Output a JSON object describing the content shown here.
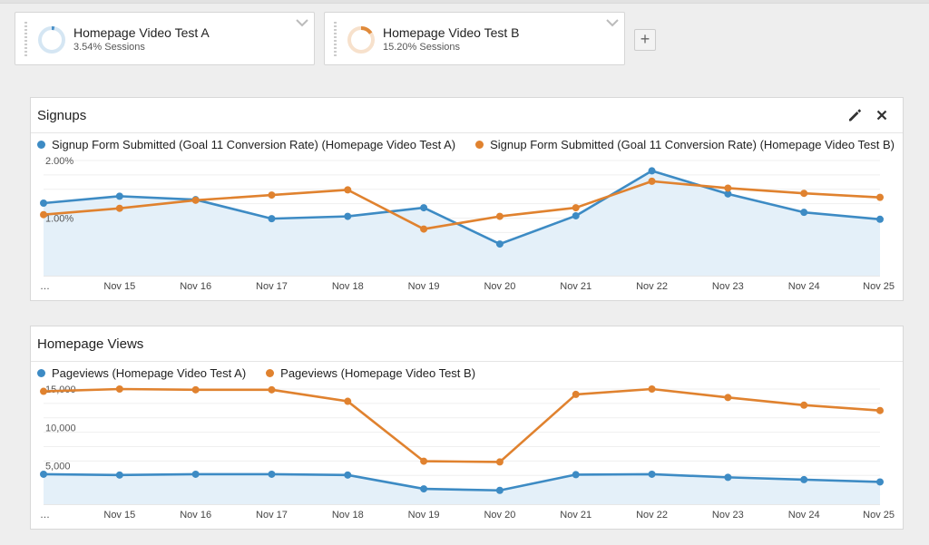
{
  "segments": [
    {
      "name": "Homepage Video Test A",
      "stat": "3.54% Sessions",
      "color": "#4a90c8",
      "fraction": 0.0354
    },
    {
      "name": "Homepage Video Test B",
      "stat": "15.20% Sessions",
      "color": "#e08a3a",
      "fraction": 0.152
    }
  ],
  "add_segment_label": "+",
  "colors": {
    "series_a": "#3d8bc4",
    "series_b": "#e0822f",
    "area_fill": "#e4f0f9"
  },
  "chart_data": [
    {
      "type": "line",
      "title": "Signups",
      "categories": [
        "…",
        "Nov 15",
        "Nov 16",
        "Nov 17",
        "Nov 18",
        "Nov 19",
        "Nov 20",
        "Nov 21",
        "Nov 22",
        "Nov 23",
        "Nov 24",
        "Nov 25"
      ],
      "y_ticks": [
        "2.00%",
        "1.00%"
      ],
      "y_tick_values": [
        2.0,
        1.0
      ],
      "ylim": [
        0,
        2.0
      ],
      "series": [
        {
          "name": "Signup Form Submitted (Goal 11 Conversion Rate) (Homepage Video Test A)",
          "values": [
            1.26,
            1.38,
            1.32,
            0.99,
            1.03,
            1.18,
            0.55,
            1.04,
            1.82,
            1.42,
            1.1,
            0.98
          ]
        },
        {
          "name": "Signup Form Submitted (Goal 11 Conversion Rate) (Homepage Video Test B)",
          "values": [
            1.06,
            1.17,
            1.31,
            1.4,
            1.49,
            0.81,
            1.03,
            1.18,
            1.64,
            1.52,
            1.43,
            1.36
          ]
        }
      ],
      "grid": true,
      "legend": "top-left"
    },
    {
      "type": "line",
      "title": "Homepage Views",
      "categories": [
        "…",
        "Nov 15",
        "Nov 16",
        "Nov 17",
        "Nov 18",
        "Nov 19",
        "Nov 20",
        "Nov 21",
        "Nov 22",
        "Nov 23",
        "Nov 24",
        "Nov 25"
      ],
      "y_ticks": [
        "15,000",
        "10,000",
        "5,000"
      ],
      "y_tick_values": [
        15000,
        10000,
        5000
      ],
      "ylim": [
        0,
        15000
      ],
      "series": [
        {
          "name": "Pageviews (Homepage Video Test A)",
          "values": [
            3900,
            3800,
            3900,
            3900,
            3800,
            2000,
            1800,
            3850,
            3900,
            3500,
            3200,
            2900
          ]
        },
        {
          "name": "Pageviews (Homepage Video Test B)",
          "values": [
            14700,
            15000,
            14900,
            14900,
            13400,
            5600,
            5500,
            14300,
            15000,
            13900,
            12900,
            12200
          ]
        }
      ],
      "grid": true,
      "legend": "top-left"
    }
  ]
}
